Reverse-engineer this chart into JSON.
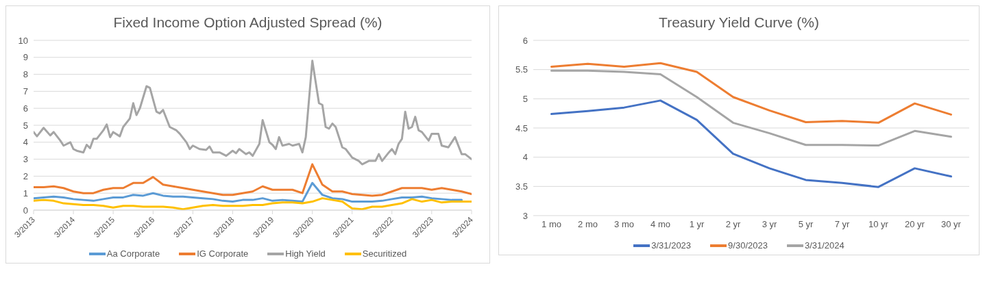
{
  "chart_data": [
    {
      "type": "line",
      "title": "Fixed Income Option Adjusted Spread (%)",
      "x": [
        "2013-03",
        "2013-06",
        "2013-09",
        "2013-12",
        "2014-03",
        "2014-06",
        "2014-09",
        "2014-12",
        "2015-03",
        "2015-06",
        "2015-09",
        "2015-12",
        "2016-03",
        "2016-06",
        "2016-09",
        "2016-12",
        "2017-03",
        "2017-06",
        "2017-09",
        "2017-12",
        "2018-03",
        "2018-06",
        "2018-09",
        "2018-12",
        "2019-03",
        "2019-06",
        "2019-09",
        "2019-12",
        "2020-03",
        "2020-06",
        "2020-09",
        "2020-12",
        "2021-03",
        "2021-06",
        "2021-09",
        "2021-12",
        "2022-03",
        "2022-06",
        "2022-09",
        "2022-12",
        "2023-03",
        "2023-06",
        "2023-09",
        "2023-12",
        "2024-03"
      ],
      "series": [
        {
          "name": "Aa Corporate",
          "color": "#5b9bd5",
          "values": [
            0.7,
            0.75,
            0.8,
            0.75,
            0.65,
            0.6,
            0.55,
            0.65,
            0.75,
            0.75,
            0.9,
            0.85,
            1.0,
            0.85,
            0.8,
            0.8,
            0.75,
            0.7,
            0.65,
            0.55,
            0.5,
            0.6,
            0.6,
            0.7,
            0.55,
            0.6,
            0.55,
            0.5,
            1.6,
            0.9,
            0.7,
            0.65,
            0.5,
            0.5,
            0.5,
            0.55,
            0.65,
            0.75,
            0.75,
            0.8,
            0.7,
            0.65,
            0.6,
            0.6,
            null
          ]
        },
        {
          "name": "IG Corporate",
          "color": "#ed7d31",
          "values": [
            1.35,
            1.35,
            1.4,
            1.3,
            1.1,
            1.0,
            1.0,
            1.2,
            1.3,
            1.3,
            1.6,
            1.6,
            1.95,
            1.5,
            1.4,
            1.3,
            1.2,
            1.1,
            1.0,
            0.9,
            0.9,
            1.0,
            1.1,
            1.4,
            1.2,
            1.2,
            1.2,
            1.0,
            2.7,
            1.5,
            1.1,
            1.1,
            0.95,
            0.9,
            0.85,
            0.9,
            1.1,
            1.3,
            1.3,
            1.3,
            1.2,
            1.3,
            1.2,
            1.1,
            0.95
          ]
        },
        {
          "name": "High Yield",
          "color": "#a5a5a5",
          "x": [
            "2013-03",
            "2013-04",
            "2013-06",
            "2013-08",
            "2013-09",
            "2013-11",
            "2013-12",
            "2014-02",
            "2014-03",
            "2014-04",
            "2014-06",
            "2014-07",
            "2014-08",
            "2014-09",
            "2014-10",
            "2014-12",
            "2015-01",
            "2015-02",
            "2015-03",
            "2015-05",
            "2015-06",
            "2015-08",
            "2015-09",
            "2015-10",
            "2015-11",
            "2016-01",
            "2016-02",
            "2016-04",
            "2016-05",
            "2016-06",
            "2016-08",
            "2016-10",
            "2016-11",
            "2017-01",
            "2017-02",
            "2017-03",
            "2017-05",
            "2017-07",
            "2017-08",
            "2017-09",
            "2017-11",
            "2018-01",
            "2018-03",
            "2018-04",
            "2018-05",
            "2018-07",
            "2018-08",
            "2018-09",
            "2018-11",
            "2018-12",
            "2019-02",
            "2019-03",
            "2019-04",
            "2019-05",
            "2019-06",
            "2019-08",
            "2019-09",
            "2019-11",
            "2019-12",
            "2020-01",
            "2020-03",
            "2020-05",
            "2020-06",
            "2020-07",
            "2020-08",
            "2020-09",
            "2020-10",
            "2020-12",
            "2021-01",
            "2021-03",
            "2021-05",
            "2021-06",
            "2021-08",
            "2021-10",
            "2021-11",
            "2021-12",
            "2022-02",
            "2022-03",
            "2022-04",
            "2022-05",
            "2022-06",
            "2022-07",
            "2022-08",
            "2022-09",
            "2022-10",
            "2022-11",
            "2022-12",
            "2023-02",
            "2023-03",
            "2023-05",
            "2023-06",
            "2023-08",
            "2023-10",
            "2023-12",
            "2024-01",
            "2024-03"
          ],
          "values": [
            4.6,
            4.35,
            4.85,
            4.4,
            4.6,
            4.1,
            3.8,
            4.0,
            3.6,
            3.5,
            3.4,
            3.85,
            3.65,
            4.2,
            4.2,
            4.7,
            5.05,
            4.3,
            4.6,
            4.35,
            4.9,
            5.4,
            6.3,
            5.6,
            6.0,
            7.3,
            7.2,
            5.8,
            5.7,
            5.9,
            4.9,
            4.7,
            4.5,
            4.0,
            3.6,
            3.8,
            3.6,
            3.55,
            3.75,
            3.4,
            3.4,
            3.2,
            3.5,
            3.35,
            3.6,
            3.3,
            3.4,
            3.2,
            3.9,
            5.3,
            4.0,
            3.85,
            3.6,
            4.3,
            3.8,
            3.9,
            3.8,
            3.9,
            3.4,
            4.3,
            8.8,
            6.3,
            6.2,
            4.9,
            4.8,
            5.1,
            4.9,
            3.7,
            3.6,
            3.1,
            2.9,
            2.7,
            2.9,
            2.9,
            3.3,
            2.9,
            3.4,
            3.6,
            3.3,
            3.9,
            4.2,
            5.8,
            4.8,
            4.9,
            5.5,
            4.7,
            4.6,
            4.1,
            4.5,
            4.5,
            3.8,
            3.7,
            4.3,
            3.3,
            3.3,
            3.0
          ]
        },
        {
          "name": "Securitized",
          "color": "#ffc000",
          "values": [
            0.55,
            0.6,
            0.55,
            0.4,
            0.35,
            0.3,
            0.3,
            0.25,
            0.15,
            0.25,
            0.25,
            0.2,
            0.2,
            0.2,
            0.15,
            0.05,
            0.15,
            0.25,
            0.3,
            0.25,
            0.25,
            0.25,
            0.3,
            0.3,
            0.4,
            0.45,
            0.45,
            0.4,
            0.5,
            0.7,
            0.6,
            0.5,
            0.1,
            0.05,
            0.2,
            0.2,
            0.3,
            0.4,
            0.65,
            0.5,
            0.6,
            0.45,
            0.5,
            0.5,
            0.5
          ]
        }
      ],
      "xlim": [
        "2013-03",
        "2024-03"
      ],
      "xticks": [
        {
          "value": "2013-03",
          "label": "3/2013"
        },
        {
          "value": "2014-03",
          "label": "3/2014"
        },
        {
          "value": "2015-03",
          "label": "3/2015"
        },
        {
          "value": "2016-03",
          "label": "3/2016"
        },
        {
          "value": "2017-03",
          "label": "3/2017"
        },
        {
          "value": "2018-03",
          "label": "3/2018"
        },
        {
          "value": "2019-03",
          "label": "3/2019"
        },
        {
          "value": "2020-03",
          "label": "3/2020"
        },
        {
          "value": "2021-03",
          "label": "3/2021"
        },
        {
          "value": "2022-03",
          "label": "3/2022"
        },
        {
          "value": "2023-03",
          "label": "3/2023"
        },
        {
          "value": "2024-03",
          "label": "3/2024"
        }
      ],
      "ylim": [
        0,
        10
      ],
      "yticks": [
        0,
        1,
        2,
        3,
        4,
        5,
        6,
        7,
        8,
        9,
        10
      ],
      "grid": "y",
      "legend": "bottom",
      "marker": "none",
      "line_style": "solid"
    },
    {
      "type": "line",
      "title": "Treasury Yield Curve (%)",
      "categories": [
        "1 mo",
        "2 mo",
        "3 mo",
        "4 mo",
        "1 yr",
        "2 yr",
        "3 yr",
        "5 yr",
        "7 yr",
        "10 yr",
        "20 yr",
        "30 yr"
      ],
      "series": [
        {
          "name": "3/31/2023",
          "color": "#4472c4",
          "values": [
            4.74,
            4.79,
            4.85,
            4.97,
            4.64,
            4.06,
            3.81,
            3.61,
            3.56,
            3.49,
            3.81,
            3.67
          ]
        },
        {
          "name": "9/30/2023",
          "color": "#ed7d31",
          "values": [
            5.55,
            5.6,
            5.55,
            5.61,
            5.46,
            5.03,
            4.8,
            4.6,
            4.62,
            4.59,
            4.92,
            4.73
          ]
        },
        {
          "name": "3/31/2024",
          "color": "#a5a5a5",
          "values": [
            5.48,
            5.48,
            5.46,
            5.42,
            5.03,
            4.59,
            4.41,
            4.21,
            4.21,
            4.2,
            4.45,
            4.35
          ]
        }
      ],
      "ylim": [
        3,
        6
      ],
      "yticks": [
        3,
        3.5,
        4,
        4.5,
        5,
        5.5,
        6
      ],
      "grid": "y",
      "legend": "bottom",
      "marker": "none",
      "line_style": "solid"
    }
  ]
}
